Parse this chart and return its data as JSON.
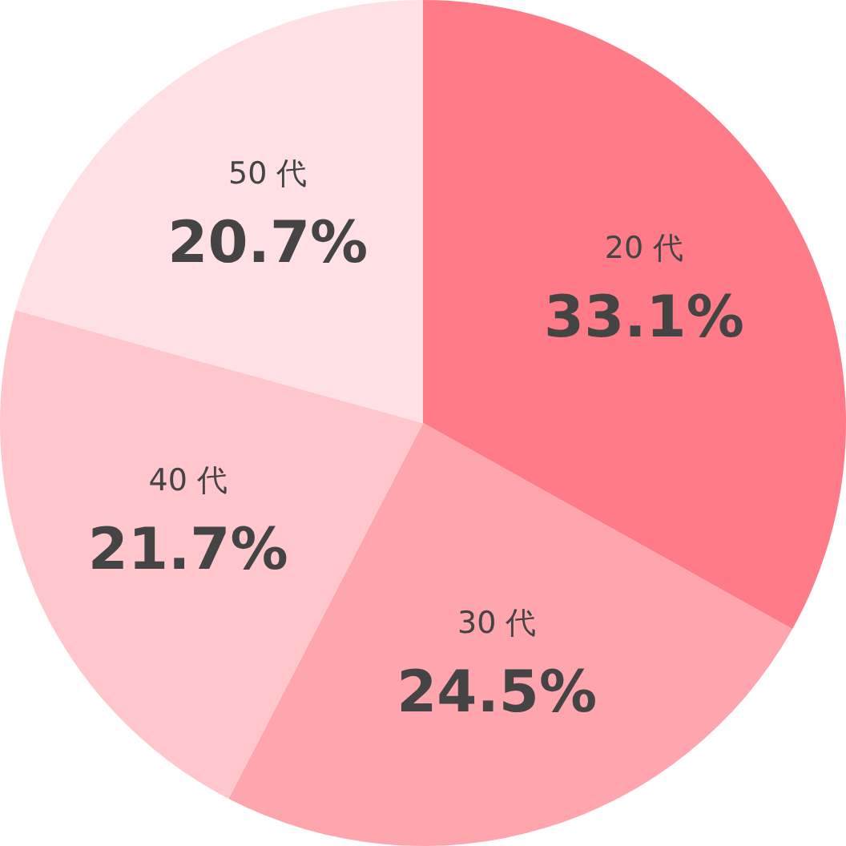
{
  "chart_data": {
    "type": "pie",
    "categories": [
      "20 代",
      "30 代",
      "40 代",
      "50 代"
    ],
    "values": [
      33.1,
      24.5,
      21.7,
      20.7
    ],
    "value_labels": [
      "33.1%",
      "24.5%",
      "21.7%",
      "20.7%"
    ],
    "colors": [
      "#ff7b88",
      "#ffa5ae",
      "#ffc6cc",
      "#ffe1e5"
    ],
    "legend": false
  }
}
